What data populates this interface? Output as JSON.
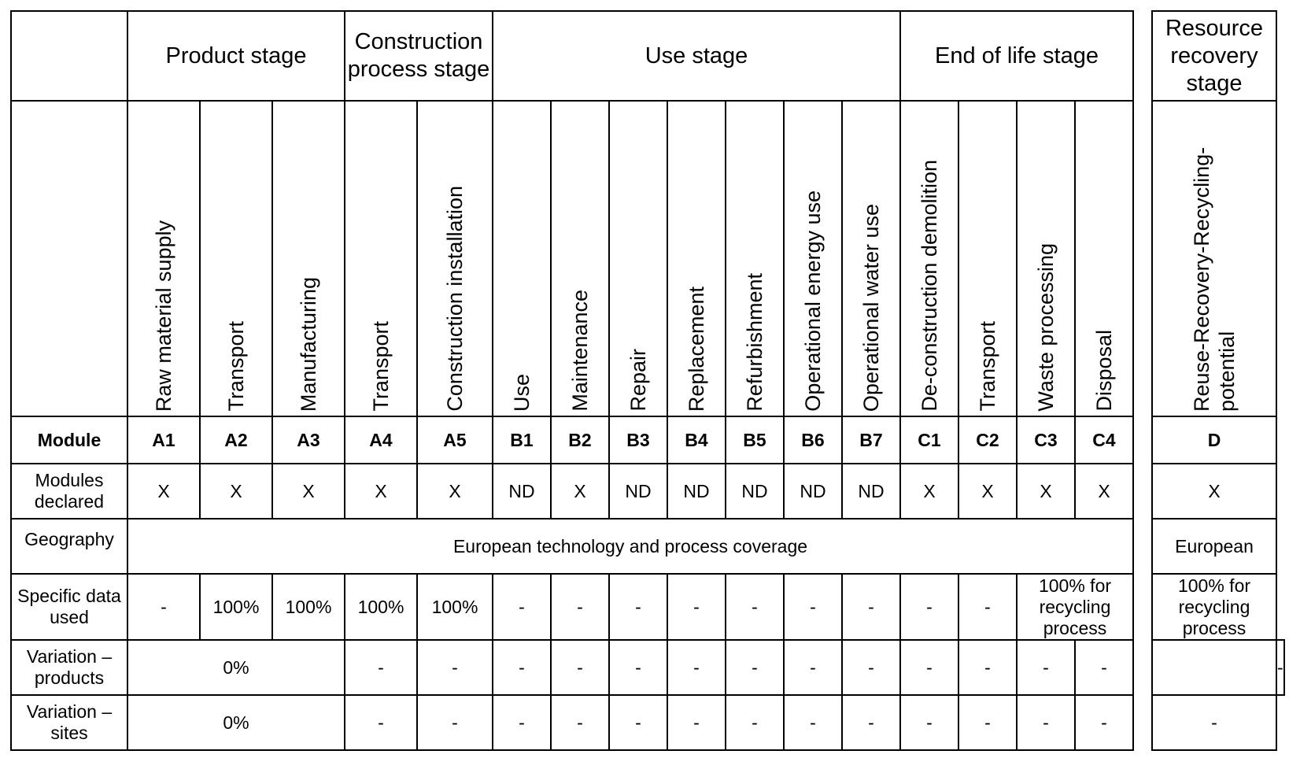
{
  "stages": {
    "product": "Product stage",
    "construction": "Construction process stage",
    "use": "Use stage",
    "end_of_life": "End of life stage",
    "resource_recovery": "Resource recovery stage"
  },
  "processes": [
    "Raw material supply",
    "Transport",
    "Manufacturing",
    "Transport",
    "Construction installation",
    "Use",
    "Maintenance",
    "Repair",
    "Replacement",
    "Refurbishment",
    "Operational energy use",
    "Operational water use",
    "De-construction demolition",
    "Transport",
    "Waste processing",
    "Disposal",
    "Reuse-Recovery-Recycling-potential"
  ],
  "rows": {
    "module": {
      "label": "Module",
      "values": [
        "A1",
        "A2",
        "A3",
        "A4",
        "A5",
        "B1",
        "B2",
        "B3",
        "B4",
        "B5",
        "B6",
        "B7",
        "C1",
        "C2",
        "C3",
        "C4",
        "D"
      ]
    },
    "declared": {
      "label": "Modules declared",
      "values": [
        "X",
        "X",
        "X",
        "X",
        "X",
        "ND",
        "X",
        "ND",
        "ND",
        "ND",
        "ND",
        "ND",
        "X",
        "X",
        "X",
        "X",
        "X"
      ]
    },
    "geography": {
      "label": "Geography",
      "main": "European technology and process coverage",
      "d": "European"
    },
    "specific": {
      "label": "Specific data used",
      "values": [
        "-",
        "100%",
        "100%",
        "100%",
        "100%",
        "-",
        "-",
        "-",
        "-",
        "-",
        "-",
        "-",
        "-",
        "-"
      ],
      "c3c4": "100% for recycling process",
      "d": "100% for recycling process"
    },
    "var_products": {
      "label": "Variation – products",
      "a1a3": "0%",
      "values": [
        "-",
        "-",
        "-",
        "-",
        "-",
        "-",
        "-",
        "-",
        "-",
        "-",
        "-",
        "-",
        "-"
      ],
      "d": "-"
    },
    "var_sites": {
      "label": "Variation – sites",
      "a1a3": "0%",
      "values": [
        "-",
        "-",
        "-",
        "-",
        "-",
        "-",
        "-",
        "-",
        "-",
        "-",
        "-",
        "-",
        "-"
      ],
      "d": "-"
    }
  }
}
